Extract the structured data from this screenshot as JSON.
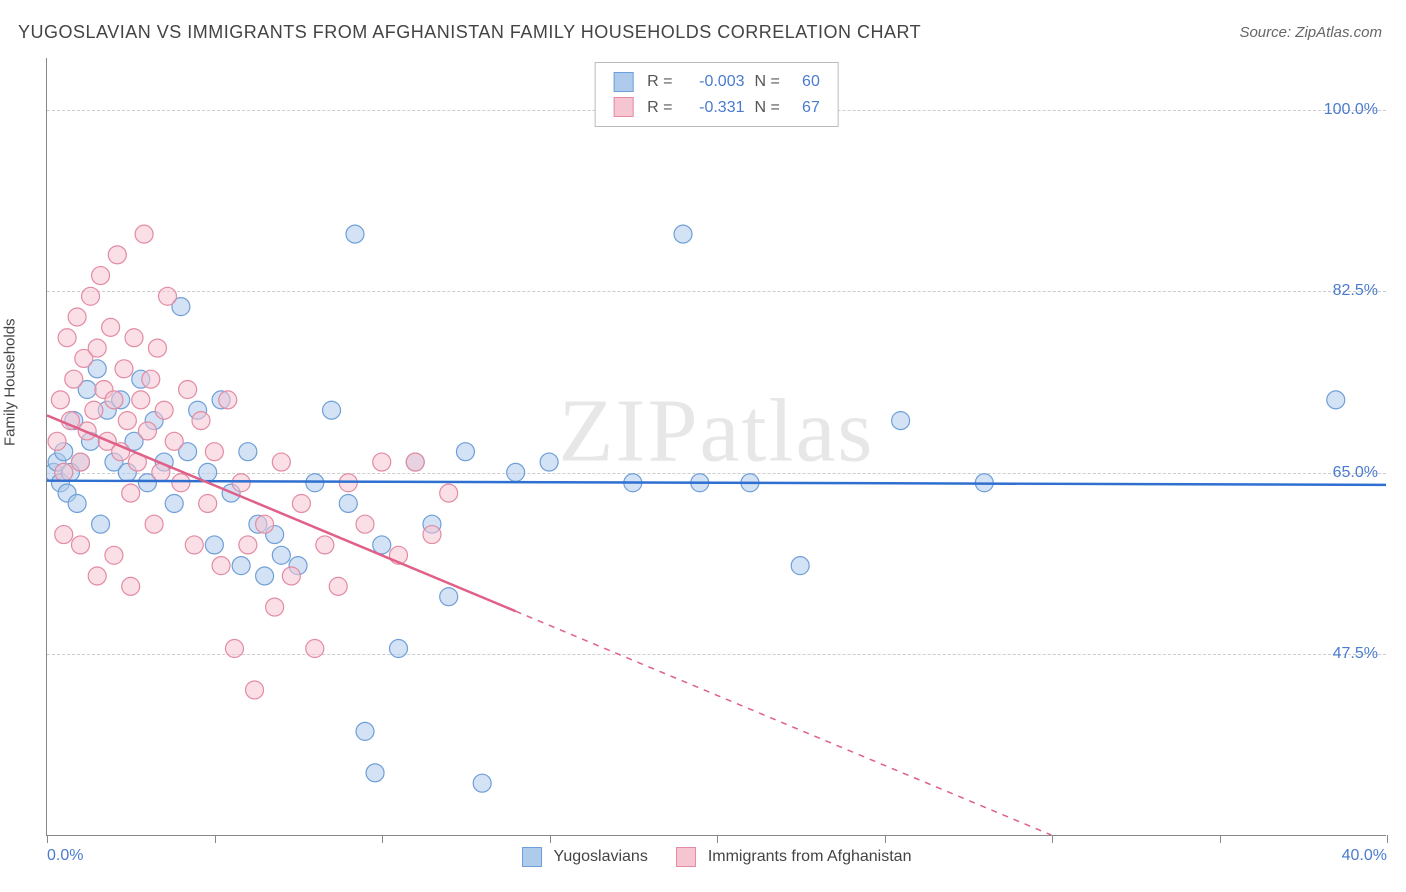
{
  "title": "YUGOSLAVIAN VS IMMIGRANTS FROM AFGHANISTAN FAMILY HOUSEHOLDS CORRELATION CHART",
  "source": "Source: ZipAtlas.com",
  "watermark": "ZIPatlas",
  "chart": {
    "type": "scatter",
    "ylabel": "Family Households",
    "xlim": [
      0,
      40
    ],
    "ylim": [
      30,
      105
    ],
    "xticks": [
      0,
      5,
      10,
      15,
      20,
      25,
      30,
      35,
      40
    ],
    "xtick_labels_shown": {
      "0": "0.0%",
      "40": "40.0%"
    },
    "yticks": [
      47.5,
      65.0,
      82.5,
      100.0
    ],
    "ytick_labels": [
      "47.5%",
      "65.0%",
      "82.5%",
      "100.0%"
    ],
    "grid_color": "#cccccc",
    "background_color": "#ffffff",
    "axis_color": "#888888",
    "tick_label_color": "#4a7bcf",
    "series": [
      {
        "name": "Yugoslavians",
        "color_fill": "#aecbeb",
        "color_stroke": "#6f9fd8",
        "marker_radius": 9,
        "fill_opacity": 0.55,
        "R": "-0.003",
        "N": "60",
        "trend": {
          "x1": 0,
          "y1": 64.2,
          "x2": 40,
          "y2": 63.8,
          "color": "#2f6fd0",
          "width": 2.5
        },
        "points": [
          [
            0.2,
            65
          ],
          [
            0.3,
            66
          ],
          [
            0.4,
            64
          ],
          [
            0.5,
            67
          ],
          [
            0.6,
            63
          ],
          [
            0.8,
            70
          ],
          [
            0.9,
            62
          ],
          [
            1.0,
            66
          ],
          [
            1.2,
            73
          ],
          [
            1.3,
            68
          ],
          [
            1.5,
            75
          ],
          [
            1.6,
            60
          ],
          [
            1.8,
            71
          ],
          [
            2.0,
            66
          ],
          [
            2.2,
            72
          ],
          [
            2.4,
            65
          ],
          [
            2.6,
            68
          ],
          [
            2.8,
            74
          ],
          [
            3.0,
            64
          ],
          [
            3.2,
            70
          ],
          [
            3.5,
            66
          ],
          [
            3.8,
            62
          ],
          [
            4.0,
            81
          ],
          [
            4.2,
            67
          ],
          [
            4.5,
            71
          ],
          [
            4.8,
            65
          ],
          [
            5.0,
            58
          ],
          [
            5.2,
            72
          ],
          [
            5.5,
            63
          ],
          [
            5.8,
            56
          ],
          [
            6.0,
            67
          ],
          [
            6.3,
            60
          ],
          [
            6.5,
            55
          ],
          [
            6.8,
            59
          ],
          [
            7.0,
            57
          ],
          [
            7.5,
            56
          ],
          [
            8.0,
            64
          ],
          [
            8.5,
            71
          ],
          [
            9.0,
            62
          ],
          [
            9.2,
            88
          ],
          [
            9.5,
            40
          ],
          [
            9.8,
            36
          ],
          [
            10.0,
            58
          ],
          [
            10.5,
            48
          ],
          [
            11.0,
            66
          ],
          [
            11.5,
            60
          ],
          [
            12.0,
            53
          ],
          [
            12.5,
            67
          ],
          [
            13.0,
            35
          ],
          [
            14.0,
            65
          ],
          [
            15.0,
            66
          ],
          [
            17.5,
            64
          ],
          [
            19.0,
            88
          ],
          [
            19.5,
            64
          ],
          [
            21.0,
            64
          ],
          [
            22.5,
            56
          ],
          [
            25.5,
            70
          ],
          [
            28.0,
            64
          ],
          [
            38.5,
            72
          ],
          [
            0.7,
            65
          ]
        ]
      },
      {
        "name": "Immigrants from Afghanistan",
        "color_fill": "#f6c5d2",
        "color_stroke": "#e38ba3",
        "marker_radius": 9,
        "fill_opacity": 0.55,
        "R": "-0.331",
        "N": "67",
        "trend": {
          "x1": 0,
          "y1": 70.5,
          "x2": 30,
          "y2": 30,
          "color": "#e06088",
          "width": 2.5,
          "solid_until_x": 14
        },
        "points": [
          [
            0.3,
            68
          ],
          [
            0.4,
            72
          ],
          [
            0.5,
            65
          ],
          [
            0.6,
            78
          ],
          [
            0.7,
            70
          ],
          [
            0.8,
            74
          ],
          [
            0.9,
            80
          ],
          [
            1.0,
            66
          ],
          [
            1.1,
            76
          ],
          [
            1.2,
            69
          ],
          [
            1.3,
            82
          ],
          [
            1.4,
            71
          ],
          [
            1.5,
            77
          ],
          [
            1.6,
            84
          ],
          [
            1.7,
            73
          ],
          [
            1.8,
            68
          ],
          [
            1.9,
            79
          ],
          [
            2.0,
            72
          ],
          [
            2.1,
            86
          ],
          [
            2.2,
            67
          ],
          [
            2.3,
            75
          ],
          [
            2.4,
            70
          ],
          [
            2.5,
            63
          ],
          [
            2.6,
            78
          ],
          [
            2.7,
            66
          ],
          [
            2.8,
            72
          ],
          [
            2.9,
            88
          ],
          [
            3.0,
            69
          ],
          [
            3.1,
            74
          ],
          [
            3.2,
            60
          ],
          [
            3.3,
            77
          ],
          [
            3.4,
            65
          ],
          [
            3.5,
            71
          ],
          [
            3.6,
            82
          ],
          [
            3.8,
            68
          ],
          [
            4.0,
            64
          ],
          [
            4.2,
            73
          ],
          [
            4.4,
            58
          ],
          [
            4.6,
            70
          ],
          [
            4.8,
            62
          ],
          [
            5.0,
            67
          ],
          [
            5.2,
            56
          ],
          [
            5.4,
            72
          ],
          [
            5.6,
            48
          ],
          [
            5.8,
            64
          ],
          [
            6.0,
            58
          ],
          [
            6.2,
            44
          ],
          [
            6.5,
            60
          ],
          [
            6.8,
            52
          ],
          [
            7.0,
            66
          ],
          [
            7.3,
            55
          ],
          [
            7.6,
            62
          ],
          [
            8.0,
            48
          ],
          [
            8.3,
            58
          ],
          [
            8.7,
            54
          ],
          [
            9.0,
            64
          ],
          [
            9.5,
            60
          ],
          [
            10.0,
            66
          ],
          [
            10.5,
            57
          ],
          [
            11.0,
            66
          ],
          [
            11.5,
            59
          ],
          [
            12.0,
            63
          ],
          [
            0.5,
            59
          ],
          [
            1.0,
            58
          ],
          [
            1.5,
            55
          ],
          [
            2.0,
            57
          ],
          [
            2.5,
            54
          ]
        ]
      }
    ],
    "stats_box": {
      "rows": [
        {
          "swatch_fill": "#aecbeb",
          "swatch_stroke": "#6f9fd8",
          "R_label": "R =",
          "R": "-0.003",
          "N_label": "N =",
          "N": "60"
        },
        {
          "swatch_fill": "#f6c5d2",
          "swatch_stroke": "#e38ba3",
          "R_label": "R =",
          "R": "-0.331",
          "N_label": "N =",
          "N": "67"
        }
      ]
    },
    "legend": [
      {
        "swatch_fill": "#aecbeb",
        "swatch_stroke": "#6f9fd8",
        "label": "Yugoslavians"
      },
      {
        "swatch_fill": "#f6c5d2",
        "swatch_stroke": "#e38ba3",
        "label": "Immigrants from Afghanistan"
      }
    ]
  }
}
